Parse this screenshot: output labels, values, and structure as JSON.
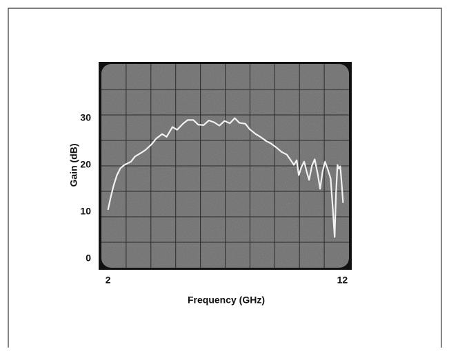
{
  "chart_data": {
    "type": "line",
    "x_label": "Frequency (GHz)",
    "y_label": "Gain (dB)",
    "x": [
      2.0,
      2.12,
      2.24,
      2.38,
      2.53,
      2.7,
      2.98,
      3.15,
      3.42,
      3.6,
      3.86,
      4.05,
      4.31,
      4.5,
      4.75,
      4.95,
      5.2,
      5.4,
      5.64,
      5.85,
      6.08,
      6.3,
      6.53,
      6.75,
      6.97,
      7.2,
      7.41,
      7.6,
      7.86,
      8.05,
      8.3,
      8.5,
      8.75,
      8.95,
      9.19,
      9.4,
      9.63,
      9.8,
      9.93,
      10.05,
      10.14,
      10.25,
      10.37,
      10.48,
      10.58,
      10.7,
      10.82,
      10.95,
      11.05,
      11.15,
      11.26,
      11.38,
      11.5,
      11.6,
      11.67,
      11.73,
      11.79,
      11.85,
      11.91,
      11.97,
      12.03
    ],
    "series": [
      {
        "color": "#f2f2f2",
        "values": [
          10.4,
          13.2,
          15.6,
          17.8,
          19.3,
          20.0,
          20.7,
          21.8,
          22.6,
          23.2,
          24.4,
          25.6,
          26.6,
          26.0,
          28.1,
          27.5,
          28.8,
          29.6,
          29.6,
          28.6,
          28.5,
          29.5,
          29.1,
          28.4,
          29.4,
          28.9,
          30.0,
          29.0,
          28.8,
          27.6,
          26.6,
          26.0,
          25.1,
          24.6,
          23.7,
          22.8,
          22.2,
          21.0,
          20.0,
          21.0,
          17.8,
          19.5,
          20.7,
          18.5,
          16.8,
          19.8,
          21.2,
          18.0,
          14.9,
          18.5,
          20.7,
          19.0,
          17.1,
          10.0,
          4.6,
          14.0,
          20.0,
          19.2,
          19.7,
          16.0,
          11.9
        ]
      }
    ],
    "xlim": [
      1.6,
      12.4
    ],
    "ylim": [
      -2.4,
      42
    ],
    "xticks": [
      2,
      12
    ],
    "yticks": [
      0,
      10,
      20,
      30
    ]
  }
}
